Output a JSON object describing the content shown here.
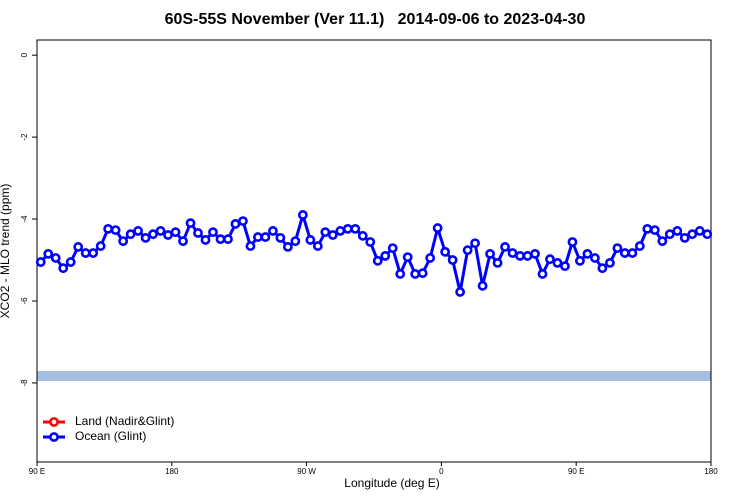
{
  "chart_data": {
    "type": "line",
    "title": "60S-55S November (Ver 11.1)   2014-09-06 to 2023-04-30",
    "x_label": "Longitude (deg E)",
    "y_label": "XCO2 - MLO trend (ppm)",
    "x": [
      92.5,
      97.5,
      102.5,
      107.5,
      112.5,
      117.5,
      122.5,
      127.5,
      132.5,
      137.5,
      142.5,
      147.5,
      152.5,
      157.5,
      162.5,
      167.5,
      172.5,
      177.5,
      182.5,
      187.5,
      192.5,
      197.5,
      202.5,
      207.5,
      212.5,
      217.5,
      222.5,
      227.5,
      232.5,
      237.5,
      242.5,
      247.5,
      252.5,
      257.5,
      262.5,
      267.5,
      272.5,
      277.5,
      282.5,
      287.5,
      292.5,
      297.5,
      302.5,
      307.5,
      312.5,
      317.5,
      322.5,
      327.5,
      332.5,
      337.5,
      342.5,
      347.5,
      352.5,
      357.5,
      362.5,
      367.5,
      372.5,
      377.5,
      382.5,
      387.5,
      392.5,
      397.5,
      402.5,
      407.5,
      412.5,
      417.5,
      422.5,
      427.5,
      432.5,
      437.5,
      442.5,
      447.5,
      452.5,
      457.5,
      462.5,
      467.5,
      472.5,
      477.5,
      482.5,
      487.5,
      492.5,
      497.5,
      502.5,
      507.5,
      512.5,
      517.5,
      522.5,
      527.5,
      532.5,
      537.5
    ],
    "series": [
      {
        "name": "Land (Nadir&Glint)",
        "color": "#ff0000",
        "values": [
          null,
          null,
          null,
          null,
          null,
          null,
          null,
          null,
          null,
          null,
          null,
          null,
          null,
          null,
          null,
          null,
          null,
          null,
          null,
          null,
          null,
          null,
          null,
          null,
          null,
          null,
          null,
          null,
          null,
          null,
          null,
          null,
          null,
          null,
          null,
          null,
          null,
          null,
          null,
          null,
          null,
          null,
          null,
          null,
          null,
          null,
          null,
          null,
          null,
          null,
          null,
          null,
          null,
          null,
          null,
          null,
          null,
          null,
          null,
          null,
          null,
          null,
          null,
          null,
          null,
          null,
          null,
          null,
          null,
          null,
          null,
          null,
          null,
          null,
          null,
          null,
          null,
          null,
          null,
          null,
          null,
          null,
          null,
          null,
          null,
          null,
          null,
          null,
          null,
          null
        ]
      },
      {
        "name": "Ocean (Glint)",
        "color": "#0000ff",
        "values": [
          -5.05,
          -4.85,
          -4.95,
          -5.2,
          -5.05,
          -4.68,
          -4.83,
          -4.83,
          -4.66,
          -4.24,
          -4.27,
          -4.54,
          -4.37,
          -4.29,
          -4.46,
          -4.37,
          -4.29,
          -4.39,
          -4.32,
          -4.54,
          -4.1,
          -4.34,
          -4.51,
          -4.32,
          -4.49,
          -4.49,
          -4.12,
          -4.05,
          -4.66,
          -4.44,
          -4.44,
          -4.29,
          -4.46,
          -4.68,
          -4.54,
          -3.9,
          -4.51,
          -4.66,
          -4.32,
          -4.39,
          -4.29,
          -4.24,
          -4.24,
          -4.41,
          -4.56,
          -5.02,
          -4.9,
          -4.71,
          -5.34,
          -4.93,
          -5.34,
          -5.32,
          -4.95,
          -4.22,
          -4.8,
          -5.0,
          -5.78,
          -4.76,
          -4.59,
          -5.63,
          -4.85,
          -5.07,
          -4.68,
          -4.83,
          -4.9,
          -4.9,
          -4.85,
          -5.34,
          -4.98,
          -5.07,
          -5.15,
          -4.56,
          -5.02,
          -4.85,
          -4.95,
          -5.2,
          -5.07,
          -4.71,
          -4.83,
          -4.83,
          -4.66,
          -4.24,
          -4.27,
          -4.54,
          -4.37,
          -4.29,
          -4.46,
          -4.37,
          -4.29,
          -4.37
        ]
      }
    ],
    "xlim": [
      90,
      540
    ],
    "xticks": [
      {
        "value": 90,
        "label": "90 E"
      },
      180,
      {
        "value": 270,
        "label": "90 W"
      },
      {
        "value": 360,
        "label": "0"
      },
      {
        "value": 450,
        "label": "90 E"
      },
      {
        "value": 540,
        "label": "180"
      }
    ],
    "ylim": [
      -9.93,
      0.37
    ],
    "yticks": [
      0,
      -2,
      -4,
      -6,
      -8
    ],
    "legend": "bottomleft"
  }
}
